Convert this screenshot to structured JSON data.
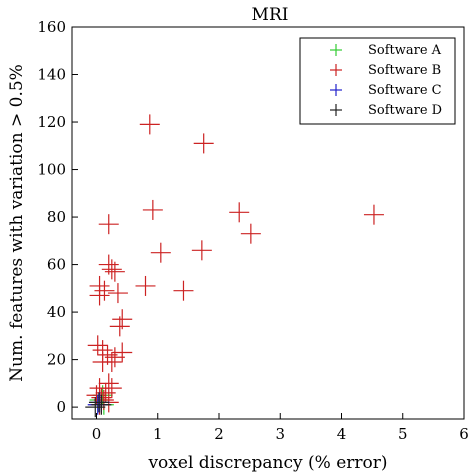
{
  "chart_data": {
    "type": "scatter",
    "title": "MRI",
    "xlabel": "voxel discrepancy (% error)",
    "ylabel": "Num. features with variation > 0.5%",
    "xlim": [
      -0.4,
      6
    ],
    "ylim": [
      -5,
      160
    ],
    "xticks": [
      0,
      1,
      2,
      3,
      4,
      5,
      6
    ],
    "yticks": [
      0,
      20,
      40,
      60,
      80,
      100,
      120,
      140,
      160
    ],
    "marker": "plus",
    "grid": false,
    "legend_position": "top-right",
    "series": [
      {
        "name": "Software A",
        "color": "#33cc33",
        "points": [
          [
            0.05,
            3
          ],
          [
            0.1,
            5
          ],
          [
            0.12,
            1
          ]
        ]
      },
      {
        "name": "Software B",
        "color": "#cc2222",
        "points": [
          [
            0.87,
            119
          ],
          [
            1.75,
            111
          ],
          [
            0.92,
            83
          ],
          [
            2.33,
            82
          ],
          [
            4.53,
            81
          ],
          [
            0.2,
            77
          ],
          [
            2.52,
            73
          ],
          [
            1.72,
            66
          ],
          [
            1.05,
            65
          ],
          [
            0.2,
            60
          ],
          [
            0.25,
            58
          ],
          [
            0.3,
            57
          ],
          [
            0.8,
            51
          ],
          [
            0.05,
            51
          ],
          [
            0.13,
            49
          ],
          [
            1.42,
            49
          ],
          [
            0.35,
            48
          ],
          [
            0.05,
            47
          ],
          [
            0.42,
            37
          ],
          [
            0.38,
            34
          ],
          [
            0.02,
            26
          ],
          [
            0.1,
            24
          ],
          [
            0.42,
            23
          ],
          [
            0.18,
            22
          ],
          [
            0.3,
            21
          ],
          [
            0.1,
            19
          ],
          [
            0.25,
            19
          ],
          [
            0.2,
            10
          ],
          [
            0.05,
            8
          ],
          [
            0.25,
            8
          ],
          [
            0.0,
            5
          ],
          [
            0.08,
            4
          ],
          [
            0.12,
            3
          ],
          [
            0.2,
            2
          ],
          [
            0.05,
            1
          ],
          [
            0.15,
            6
          ]
        ]
      },
      {
        "name": "Software C",
        "color": "#2222cc",
        "points": [
          [
            0.02,
            1
          ],
          [
            0.05,
            2
          ]
        ]
      },
      {
        "name": "Software D",
        "color": "#222222",
        "points": [
          [
            -0.02,
            0
          ],
          [
            0.08,
            1
          ],
          [
            0.04,
            2
          ]
        ]
      }
    ]
  }
}
